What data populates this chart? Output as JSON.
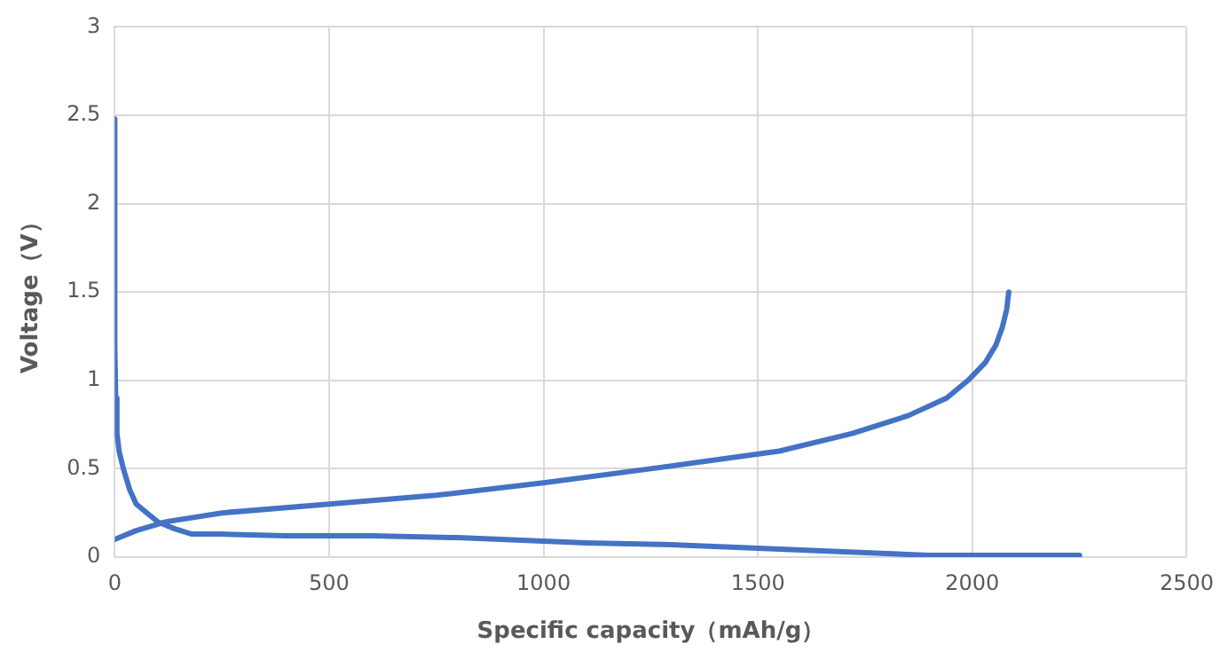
{
  "chart_data": {
    "type": "line",
    "xlabel": "Specific capacity（mAh/g）",
    "ylabel": "Voltage（V）",
    "xlim": [
      0,
      2500
    ],
    "xticks": [
      0,
      500,
      1000,
      1500,
      2000,
      2500
    ],
    "ylim": [
      0,
      3
    ],
    "yticks": [
      0,
      0.5,
      1,
      1.5,
      2,
      2.5,
      3
    ],
    "grid": true,
    "legend": false,
    "marker": "none",
    "line_style": "solid",
    "series": [
      {
        "color": "#4472c4",
        "x": [
          0,
          0,
          2,
          5,
          10,
          20,
          35,
          50,
          75,
          100,
          140,
          180,
          250,
          400,
          600,
          800,
          900,
          1100,
          1300,
          1500,
          1700,
          1800,
          1900,
          2250
        ],
        "values": [
          2.48,
          1.2,
          0.9,
          0.7,
          0.6,
          0.5,
          0.38,
          0.3,
          0.25,
          0.2,
          0.16,
          0.13,
          0.13,
          0.12,
          0.12,
          0.11,
          0.1,
          0.08,
          0.07,
          0.05,
          0.03,
          0.02,
          0.01,
          0.01
        ]
      },
      {
        "color": "#4472c4",
        "x": [
          0,
          50,
          120,
          250,
          500,
          750,
          1000,
          1250,
          1550,
          1720,
          1850,
          1940,
          1990,
          2030,
          2055,
          2070,
          2080,
          2085
        ],
        "values": [
          0.1,
          0.15,
          0.2,
          0.25,
          0.3,
          0.35,
          0.42,
          0.5,
          0.6,
          0.7,
          0.8,
          0.9,
          1.0,
          1.1,
          1.2,
          1.3,
          1.4,
          1.5
        ]
      }
    ]
  }
}
